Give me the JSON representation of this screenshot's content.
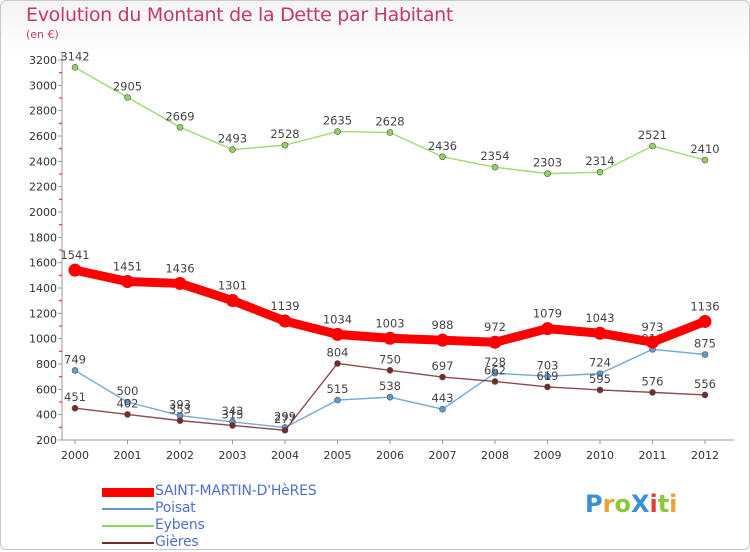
{
  "title": "Evolution du Montant de la Dette par Habitant",
  "unit_label": "(en €)",
  "logo_text": "ProXiti",
  "chart_data": {
    "type": "line",
    "x": [
      "2000",
      "2001",
      "2002",
      "2003",
      "2004",
      "2005",
      "2006",
      "2007",
      "2008",
      "2009",
      "2010",
      "2011",
      "2012"
    ],
    "ylim": [
      200,
      3200
    ],
    "yticks": [
      200,
      400,
      600,
      800,
      1000,
      1200,
      1400,
      1600,
      1800,
      2000,
      2200,
      2400,
      2600,
      2800,
      3000,
      3200
    ],
    "grid": false,
    "legend_position": "bottom-left",
    "series": [
      {
        "name": "SAINT-MARTIN-D'HèRES",
        "color": "#ff0000",
        "values": [
          1541,
          1451,
          1436,
          1301,
          1139,
          1034,
          1003,
          988,
          972,
          1079,
          1043,
          973,
          1136
        ]
      },
      {
        "name": "Poisat",
        "color": "#5b9bd5",
        "values": [
          749,
          500,
          393,
          343,
          299,
          515,
          538,
          443,
          728,
          703,
          724,
          916,
          875
        ]
      },
      {
        "name": "Eybens",
        "color": "#8fd45c",
        "values": [
          3142,
          2905,
          2669,
          2493,
          2528,
          2635,
          2628,
          2436,
          2354,
          2303,
          2314,
          2521,
          2410
        ]
      },
      {
        "name": "Gières",
        "color": "#7b2a2a",
        "values": [
          451,
          402,
          353,
          315,
          277,
          804,
          750,
          697,
          662,
          619,
          595,
          576,
          556
        ]
      }
    ]
  }
}
